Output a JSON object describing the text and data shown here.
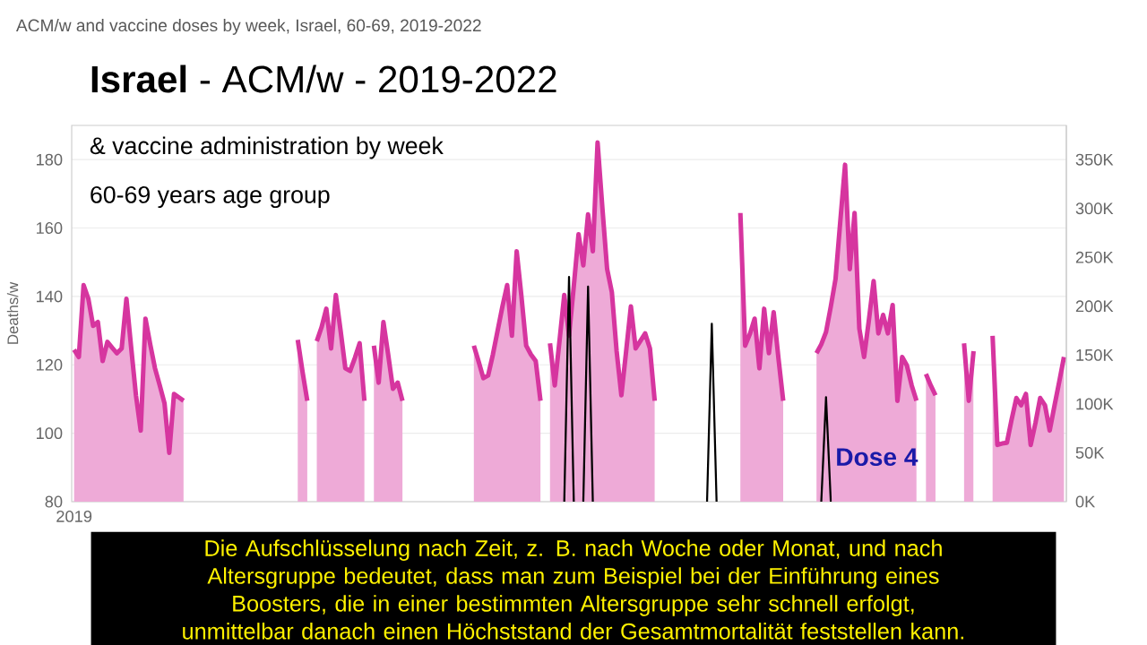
{
  "chart_data": {
    "type": "area",
    "title": "ACM/w and vaccine doses by week, Israel, 60-69, 2019-2022",
    "subtitle": "**Israel**  -  ACM/w  -  2019-2022",
    "ylabel": "Deaths/w",
    "annotations": [
      "& vaccine administration by week",
      "60-69 years age group",
      "Dose 4",
      "Die Aufschlüsselung nach Zeit, z. B. nach Woche oder Monat, und nach Altersgruppe bedeutet, dass man zum Beispiel bei der Einführung eines Boosters, die in einer bestimmten Altersgruppe sehr schnell erfolgt, unmittelbar danach einen Höchststand der Gesamtmortalität feststellen kann."
    ],
    "categories": [
      "2019",
      null,
      null,
      null,
      null,
      null,
      null,
      null,
      null,
      null,
      null,
      null,
      null,
      null,
      null,
      null,
      null,
      null,
      null,
      null,
      null,
      null,
      null,
      null,
      null,
      null,
      null,
      null,
      null,
      null,
      null,
      null,
      null,
      null,
      null,
      null,
      null,
      null,
      null,
      null,
      null,
      null,
      null,
      null,
      null,
      null,
      null,
      null,
      null,
      null,
      null,
      null,
      null,
      null,
      null,
      null,
      null,
      null,
      null,
      null,
      null,
      null,
      null,
      null,
      null,
      null,
      null,
      null,
      null,
      null,
      null,
      null,
      null,
      null,
      null,
      null,
      null,
      null,
      null,
      null,
      null,
      null,
      null,
      null,
      null,
      null,
      null,
      null,
      null,
      null,
      null,
      null,
      null,
      null,
      null,
      null,
      null,
      null,
      null,
      null,
      null,
      null,
      null,
      null,
      null,
      null,
      null,
      null,
      null,
      null,
      null,
      null,
      null,
      null,
      null,
      null,
      null,
      null,
      null,
      null,
      null,
      null,
      null,
      null,
      null,
      null,
      null,
      null,
      null,
      null,
      null,
      null,
      null,
      null,
      null,
      null,
      null,
      null,
      null,
      null,
      null,
      null,
      null,
      null,
      null,
      null,
      null,
      null,
      null,
      null,
      null,
      null,
      null,
      null,
      null,
      null,
      null,
      null,
      null,
      null,
      null,
      null,
      null,
      null,
      null,
      null,
      null,
      null,
      null,
      null,
      null,
      null,
      null,
      null,
      null,
      null,
      null,
      null,
      null,
      null,
      null,
      null,
      null,
      null,
      null,
      null,
      null,
      null,
      null,
      null,
      null,
      null,
      null,
      null,
      null,
      null,
      null,
      null,
      null,
      null,
      null,
      null,
      null,
      null,
      null,
      null,
      null,
      null,
      null
    ],
    "ylim": [
      80,
      190
    ],
    "yticks": [
      {
        "value": 80,
        "label": "80"
      },
      {
        "value": 100,
        "label": "100"
      },
      {
        "value": 120,
        "label": "120"
      },
      {
        "value": 140,
        "label": "140"
      },
      {
        "value": 160,
        "label": "160"
      },
      {
        "value": 180,
        "label": "180"
      }
    ],
    "y2lim": [
      0,
      385000
    ],
    "y2ticks": [
      {
        "value": 0,
        "label": "0K"
      },
      {
        "value": 50000,
        "label": "50K"
      },
      {
        "value": 100000,
        "label": "100K"
      },
      {
        "value": 150000,
        "label": "150K"
      },
      {
        "value": 200000,
        "label": "200K"
      },
      {
        "value": 250000,
        "label": "250K"
      },
      {
        "value": 300000,
        "label": "300K"
      },
      {
        "value": 350000,
        "label": "350K"
      }
    ],
    "grid": "y",
    "series": [
      {
        "color": "#d6359f",
        "values": [
          124.4,
          122.3,
          143.3,
          139.3,
          131.4,
          132.5,
          121.1,
          126.7,
          125,
          123.4,
          124.8,
          139.3,
          125,
          111.1,
          100.8,
          133.5,
          126,
          119,
          114,
          108.8,
          94.3,
          111.5,
          110.5,
          109.5,
          null,
          null,
          null,
          null,
          null,
          null,
          null,
          null,
          null,
          null,
          null,
          null,
          null,
          null,
          null,
          null,
          null,
          null,
          null,
          null,
          null,
          null,
          null,
          127.3,
          118,
          109.5,
          null,
          126.9,
          131,
          136.4,
          124.8,
          140.4,
          130,
          119,
          118.2,
          122,
          126.3,
          109.5,
          null,
          125.6,
          114.8,
          132.5,
          123,
          113,
          114.8,
          109.5,
          null,
          null,
          null,
          null,
          null,
          null,
          null,
          null,
          null,
          null,
          null,
          null,
          null,
          null,
          125.6,
          121,
          116.1,
          116.9,
          123,
          130,
          137,
          143.3,
          128.5,
          153.2,
          140,
          125.6,
          123,
          121.1,
          109.5,
          null,
          126.3,
          114,
          127,
          140.4,
          128.5,
          143,
          158.2,
          149.1,
          164,
          153.2,
          185,
          166,
          148,
          141.2,
          124,
          111.1,
          124,
          137.1,
          124.8,
          127,
          129.2,
          124.8,
          109.5,
          null,
          null,
          null,
          null,
          null,
          null,
          null,
          null,
          null,
          null,
          null,
          null,
          null,
          null,
          null,
          null,
          null,
          164.4,
          125.6,
          129,
          133.5,
          119,
          136.4,
          123.4,
          135.4,
          122,
          109.5,
          null,
          null,
          null,
          null,
          null,
          null,
          123.4,
          126,
          129.6,
          137,
          145.1,
          162,
          178.5,
          148,
          164.4,
          130.6,
          122.3,
          133,
          144.5,
          129.2,
          134.6,
          129.2,
          137.5,
          109.5,
          122.3,
          119.8,
          114,
          109.5,
          null,
          117.3,
          114,
          111.1,
          null,
          null,
          null,
          null,
          null,
          126.3,
          109.5,
          124,
          null,
          null,
          null,
          128.5,
          96.6,
          97,
          97.2,
          104,
          110.3,
          108.2,
          111.5,
          96.6,
          103,
          110.3,
          108.2,
          100.8,
          108,
          115,
          122.3
        ]
      },
      {
        "type": "line",
        "axis": "y2",
        "color": "#000000",
        "values": [
          null,
          null,
          null,
          null,
          null,
          null,
          null,
          null,
          null,
          null,
          null,
          null,
          null,
          null,
          null,
          null,
          null,
          null,
          null,
          null,
          null,
          null,
          null,
          null,
          null,
          null,
          null,
          null,
          null,
          null,
          null,
          null,
          null,
          null,
          null,
          null,
          null,
          null,
          null,
          null,
          null,
          null,
          null,
          null,
          null,
          null,
          null,
          null,
          null,
          null,
          null,
          null,
          null,
          null,
          null,
          null,
          null,
          null,
          null,
          null,
          null,
          null,
          null,
          null,
          null,
          null,
          null,
          null,
          null,
          null,
          null,
          null,
          null,
          null,
          null,
          null,
          null,
          null,
          null,
          null,
          null,
          null,
          null,
          null,
          null,
          null,
          null,
          null,
          null,
          null,
          null,
          null,
          null,
          null,
          null,
          null,
          null,
          null,
          null,
          null,
          null,
          null,
          null,
          0,
          230000,
          0,
          null,
          0,
          220000,
          0,
          null,
          null,
          null,
          null,
          null,
          null,
          null,
          null,
          null,
          null,
          null,
          null,
          null,
          null,
          null,
          null,
          null,
          null,
          null,
          null,
          null,
          null,
          null,
          0,
          182000,
          0,
          null,
          null,
          null,
          null,
          null,
          null,
          null,
          null,
          null,
          null,
          null,
          null,
          null,
          null,
          null,
          null,
          null,
          null,
          null,
          null,
          null,
          0,
          107000,
          0,
          null,
          null,
          null,
          null,
          null,
          null,
          null,
          null,
          null,
          null,
          null,
          null,
          null,
          null,
          null,
          null,
          null,
          null,
          null,
          null,
          null,
          null,
          null,
          null,
          null,
          null,
          null,
          null,
          null,
          null,
          null,
          null,
          null,
          null,
          null,
          null,
          null,
          null,
          null,
          null,
          null,
          null,
          null,
          null,
          null,
          null,
          null,
          null,
          null
        ]
      }
    ]
  }
}
